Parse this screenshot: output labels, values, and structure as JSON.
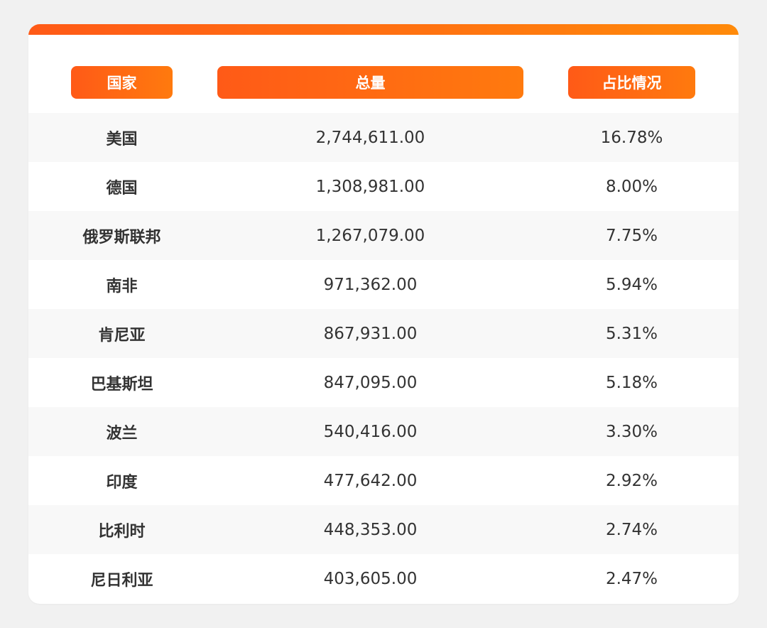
{
  "chart_data": {
    "type": "table",
    "columns": [
      "国家",
      "总量",
      "占比情况"
    ],
    "rows": [
      {
        "country": "美国",
        "total": "2,744,611.00",
        "share": "16.78%"
      },
      {
        "country": "德国",
        "total": "1,308,981.00",
        "share": "8.00%"
      },
      {
        "country": "俄罗斯联邦",
        "total": "1,267,079.00",
        "share": "7.75%"
      },
      {
        "country": "南非",
        "total": "971,362.00",
        "share": "5.94%"
      },
      {
        "country": "肯尼亚",
        "total": "867,931.00",
        "share": "5.31%"
      },
      {
        "country": "巴基斯坦",
        "total": "847,095.00",
        "share": "5.18%"
      },
      {
        "country": "波兰",
        "total": "540,416.00",
        "share": "3.30%"
      },
      {
        "country": "印度",
        "total": "477,642.00",
        "share": "2.92%"
      },
      {
        "country": "比利时",
        "total": "448,353.00",
        "share": "2.74%"
      },
      {
        "country": "尼日利亚",
        "total": "403,605.00",
        "share": "2.47%"
      }
    ]
  },
  "colors": {
    "accent_start": "#ff5a17",
    "accent_end": "#ff8a0a",
    "row_alt": "#f8f8f8",
    "text": "#333333",
    "background": "#f1f1f1"
  }
}
